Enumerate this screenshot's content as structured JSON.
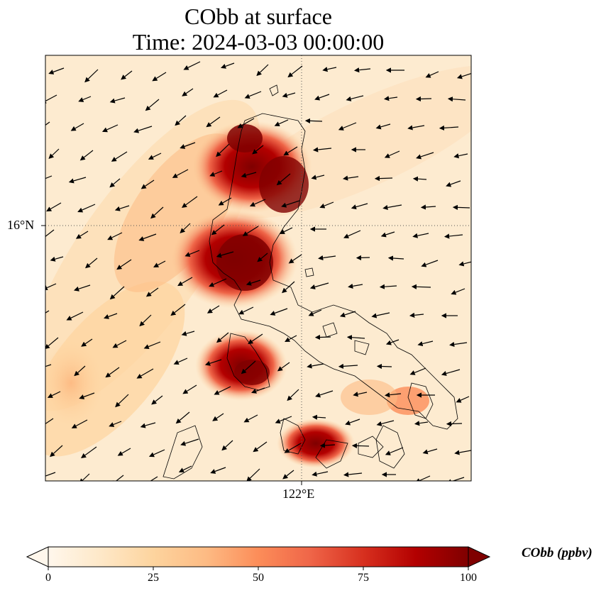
{
  "title": {
    "line1": "CObb at surface",
    "line2": "Time: 2024-03-03 00:00:00"
  },
  "axes": {
    "lat_tick": "16°N",
    "lon_tick": "122°E"
  },
  "colorbar": {
    "label": "CObb (ppbv)",
    "ticks": [
      "0",
      "25",
      "50",
      "75",
      "100"
    ],
    "min": 0,
    "max": 100,
    "extend": "both",
    "cmap": "OrRd",
    "colors": [
      "#fff7ec",
      "#fee8c8",
      "#fdd49e",
      "#fdbb84",
      "#fc8d59",
      "#ef6548",
      "#d7301f",
      "#b30000",
      "#7f0000"
    ]
  },
  "map": {
    "background_color": "#fde8c8",
    "coastline_color": "#000000",
    "gridline_style": "dotted",
    "wind_vectors": "black arrows, mostly easterly flow toward southwest"
  }
}
